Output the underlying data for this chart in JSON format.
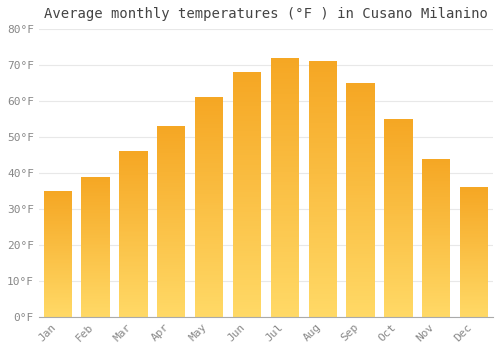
{
  "title": "Average monthly temperatures (°F ) in Cusano Milanino",
  "months": [
    "Jan",
    "Feb",
    "Mar",
    "Apr",
    "May",
    "Jun",
    "Jul",
    "Aug",
    "Sep",
    "Oct",
    "Nov",
    "Dec"
  ],
  "values": [
    35,
    39,
    46,
    53,
    61,
    68,
    72,
    71,
    65,
    55,
    44,
    36
  ],
  "bar_color_top": "#F5A623",
  "bar_color_bottom": "#FFD966",
  "ylim": [
    0,
    80
  ],
  "yticks": [
    0,
    10,
    20,
    30,
    40,
    50,
    60,
    70,
    80
  ],
  "ytick_labels": [
    "0°F",
    "10°F",
    "20°F",
    "30°F",
    "40°F",
    "50°F",
    "60°F",
    "70°F",
    "80°F"
  ],
  "bg_color": "#FFFFFF",
  "grid_color": "#E8E8E8",
  "title_fontsize": 10,
  "tick_fontsize": 8,
  "bar_width": 0.75
}
